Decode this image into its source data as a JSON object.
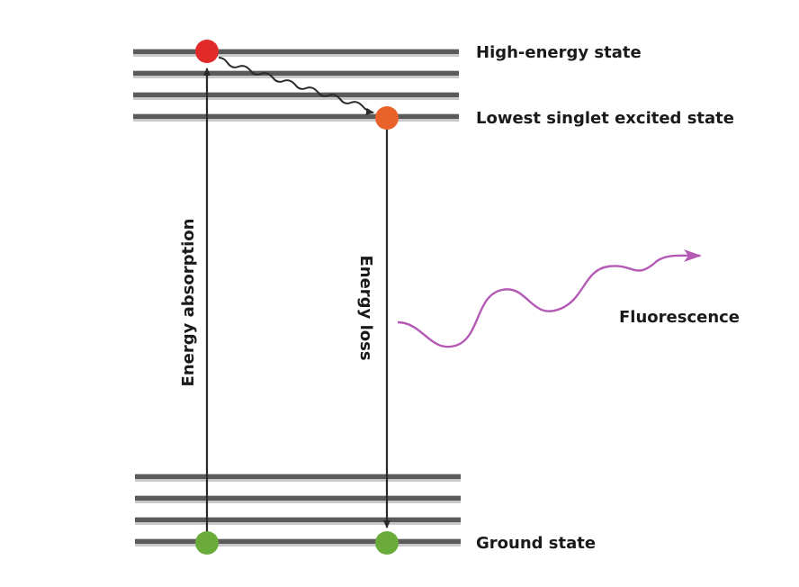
{
  "labels": {
    "high_energy": "High-energy state",
    "lowest_singlet": "Lowest singlet excited state",
    "ground": "Ground state",
    "absorption": "Energy absorption",
    "loss": "Energy loss",
    "fluorescence": "Fluorescence"
  },
  "colors": {
    "level_line": "#5a5a5a",
    "level_shadow": "#c8c8c8",
    "arrow": "#2a2a2a",
    "high_energy_dot": "#e02a2a",
    "singlet_dot": "#e8622a",
    "ground_dot": "#6aab3c",
    "fluorescence_wave": "#b45ab4"
  }
}
